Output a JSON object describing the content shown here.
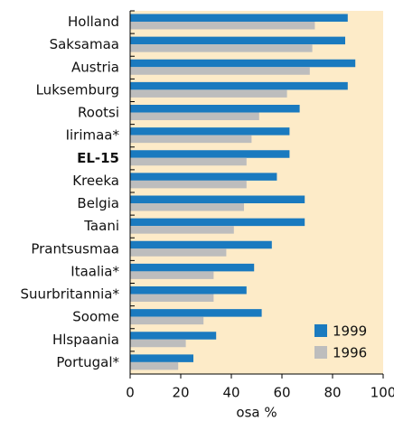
{
  "chart_data": {
    "type": "bar",
    "orientation": "horizontal",
    "categories": [
      "Holland",
      "Saksamaa",
      "Austria",
      "Luksemburg",
      "Rootsi",
      "Iirimaa*",
      "EL-15",
      "Kreeka",
      "Belgia",
      "Taani",
      "Prantsusmaa",
      "Itaalia*",
      "Suurbritannia*",
      "Soome",
      "Hlspaania",
      "Portugal*"
    ],
    "series": [
      {
        "name": "1999",
        "color": "#1a7abf",
        "values": [
          86,
          85,
          89,
          86,
          67,
          63,
          63,
          58,
          69,
          69,
          56,
          49,
          46,
          52,
          34,
          25
        ]
      },
      {
        "name": "1996",
        "color": "#bdbdbd",
        "values": [
          73,
          72,
          71,
          62,
          51,
          48,
          46,
          46,
          45,
          41,
          38,
          33,
          33,
          29,
          22,
          19
        ]
      }
    ],
    "x_label": "osa %",
    "xlim": [
      0,
      100
    ],
    "xticks": [
      0,
      20,
      40,
      60,
      80,
      100
    ],
    "background": "#fdebc8",
    "legend": "lower right"
  }
}
